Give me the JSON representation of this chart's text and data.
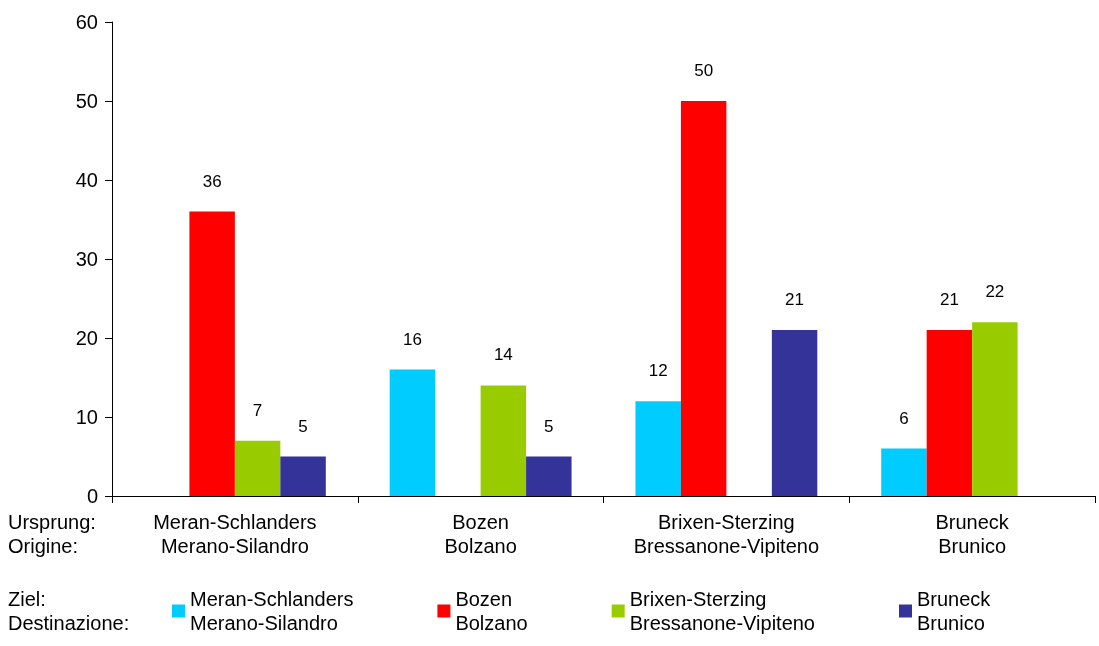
{
  "chart_data": {
    "type": "bar",
    "categories": [
      "Meran-Schlanders\nMerano-Silandro",
      "Bozen\nBolzano",
      "Brixen-Sterzing\nBressanone-Vipiteno",
      "Bruneck\nBrunico"
    ],
    "xlabel": "Ursprung:\nOrigine:",
    "legend_title": "Ziel:\nDestinazione:",
    "series": [
      {
        "name": "Meran-Schlanders\nMerano-Silandro",
        "color": "#00ccff",
        "values": [
          null,
          16,
          12,
          6
        ]
      },
      {
        "name": "Bozen\nBolzano",
        "color": "#ff0000",
        "values": [
          36,
          null,
          50,
          21
        ]
      },
      {
        "name": "Brixen-Sterzing\nBressanone-Vipiteno",
        "color": "#99cc00",
        "values": [
          7,
          14,
          null,
          22
        ]
      },
      {
        "name": "Bruneck\nBrunico",
        "color": "#333399",
        "values": [
          5,
          5,
          21,
          null
        ]
      }
    ],
    "ylim": [
      0,
      60
    ],
    "yticks": [
      0,
      10,
      20,
      30,
      40,
      50,
      60
    ],
    "data_labels": true,
    "grid": false,
    "legend": "bottom"
  }
}
